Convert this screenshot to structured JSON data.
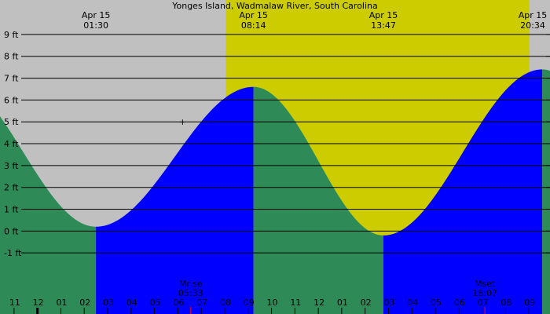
{
  "chart_data": {
    "type": "area",
    "title": "Yonges Island, Wadmalaw River, South Carolina",
    "ylabel": "",
    "xlabel": "",
    "y_unit": "ft",
    "ylim": [
      -2,
      9.5
    ],
    "y_ticks": [
      -1,
      0,
      1,
      2,
      3,
      4,
      5,
      6,
      7,
      8,
      9
    ],
    "y_tick_labels": [
      "-1 ft",
      "0 ft",
      "1 ft",
      "2 ft",
      "3 ft",
      "4 ft",
      "5 ft",
      "6 ft",
      "7 ft",
      "8 ft",
      "9 ft"
    ],
    "x_range_hours": [
      -2.6,
      20.9
    ],
    "x_ticks": [
      -2,
      -1,
      0,
      1,
      2,
      3,
      4,
      5,
      6,
      7,
      8,
      9,
      10,
      11,
      12,
      13,
      14,
      15,
      16,
      17,
      18,
      19,
      20,
      21
    ],
    "x_tick_labels": [
      "11",
      "12",
      "01",
      "02",
      "03",
      "04",
      "05",
      "06",
      "07",
      "08",
      "09",
      "10",
      "11",
      "12",
      "01",
      "02",
      "03",
      "04",
      "05",
      "06",
      "07",
      "08",
      "09",
      "10"
    ],
    "midnight_tick": -1,
    "grid": true,
    "daylight": {
      "start_hour": 7.05,
      "end_hour": 20.02
    },
    "tide_extremes": [
      {
        "date": "Apr 15",
        "time": "01:30",
        "hour": 1.5,
        "height_ft": 0.2,
        "type": "low"
      },
      {
        "date": "Apr 15",
        "time": "08:14",
        "hour": 8.233,
        "height_ft": 6.6,
        "type": "high"
      },
      {
        "date": "Apr 15",
        "time": "13:47",
        "hour": 13.783,
        "height_ft": -0.2,
        "type": "low"
      },
      {
        "date": "Apr 15",
        "time": "20:34",
        "hour": 20.567,
        "height_ft": 7.4,
        "type": "high"
      }
    ],
    "tide_extrapolation": {
      "before": {
        "hour": -4.7,
        "height_ft": 7.0
      },
      "after": {
        "hour": 26.5,
        "height_ft": -0.5
      }
    },
    "marker": {
      "hour": 5.2,
      "height_ft": 5.0,
      "symbol": "+"
    },
    "moon_events": [
      {
        "label": "Mrise",
        "time": "05:33",
        "hour": 5.55
      },
      {
        "label": "Mset",
        "time": "18:07",
        "hour": 18.117
      }
    ],
    "colors": {
      "background": "#c0c0c0",
      "daylight": "#cccc00",
      "rising_tide": "#0000ff",
      "falling_tide": "#2e8b57",
      "grid": "#000000",
      "moon_tick": "#ff0000"
    }
  }
}
